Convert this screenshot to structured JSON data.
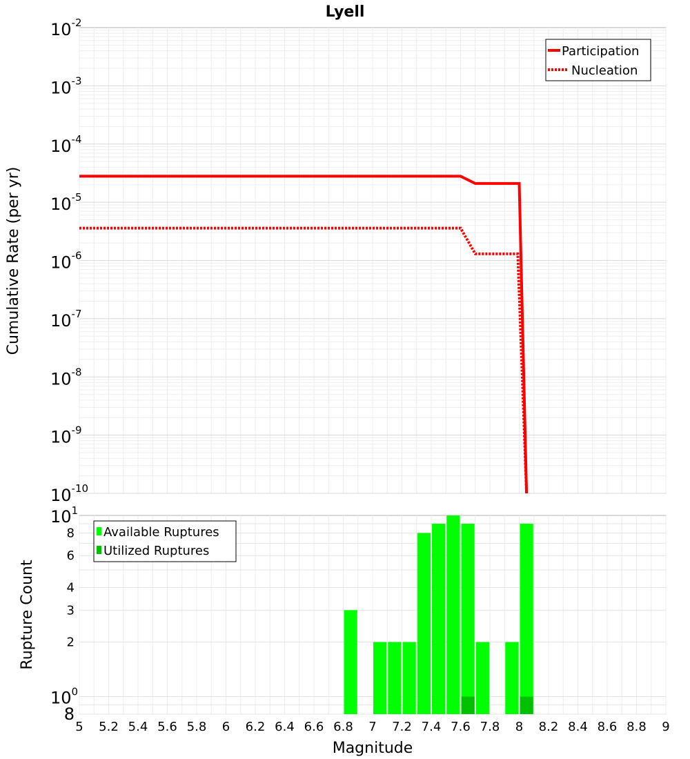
{
  "chart_data": [
    {
      "type": "line",
      "title": "Lyell",
      "xlabel": "",
      "ylabel": "Cumulative Rate (per yr)",
      "xlim": [
        5,
        9
      ],
      "ylim": [
        1e-10,
        0.01
      ],
      "yscale": "log",
      "grid": true,
      "legend": {
        "placement": "top-right",
        "entries": [
          "Participation",
          "Nucleation"
        ]
      },
      "y_ticks": [
        {
          "base": "10",
          "exp": "-2"
        },
        {
          "base": "10",
          "exp": "-3"
        },
        {
          "base": "10",
          "exp": "-4"
        },
        {
          "base": "10",
          "exp": "-5"
        },
        {
          "base": "10",
          "exp": "-6"
        },
        {
          "base": "10",
          "exp": "-7"
        },
        {
          "base": "10",
          "exp": "-8"
        },
        {
          "base": "10",
          "exp": "-9"
        },
        {
          "base": "10",
          "exp": "-10"
        }
      ],
      "series": [
        {
          "name": "Participation",
          "color": "#ff0000",
          "style": "solid",
          "x": [
            5.0,
            7.6,
            7.7,
            8.0,
            8.05
          ],
          "y": [
            2.8e-05,
            2.8e-05,
            2.1e-05,
            2.1e-05,
            1e-10
          ]
        },
        {
          "name": "Nucleation",
          "color": "#ff0000",
          "style": "dotted",
          "x": [
            5.0,
            7.6,
            7.7,
            7.99,
            8.05
          ],
          "y": [
            3.6e-06,
            3.6e-06,
            1.3e-06,
            1.3e-06,
            1e-10
          ]
        }
      ]
    },
    {
      "type": "bar",
      "xlabel": "Magnitude",
      "ylabel": "Rupture Count",
      "xlim": [
        5,
        9
      ],
      "ylim": [
        0.8,
        10
      ],
      "yscale": "log",
      "grid": true,
      "legend": {
        "placement": "top-left",
        "entries": [
          "Available Ruptures",
          "Utilized Ruptures"
        ]
      },
      "x_ticks": [
        "5",
        "5.2",
        "5.4",
        "5.6",
        "5.8",
        "6",
        "6.2",
        "6.4",
        "6.6",
        "6.8",
        "7",
        "7.2",
        "7.4",
        "7.6",
        "7.8",
        "8",
        "8.2",
        "8.4",
        "8.6",
        "8.8",
        "9"
      ],
      "y_ticks_minor": [
        "8",
        "6",
        "4",
        "3",
        "2"
      ],
      "y_ticks_major": [
        {
          "base": "10",
          "exp": "1"
        },
        {
          "base": "10",
          "exp": "0"
        }
      ],
      "y_bottom_label": "8",
      "bin_width": 0.1,
      "series": [
        {
          "name": "Available Ruptures",
          "color": "#00ff00",
          "x": [
            6.85,
            7.05,
            7.15,
            7.25,
            7.35,
            7.45,
            7.55,
            7.65,
            7.75,
            7.95,
            8.05
          ],
          "values": [
            3,
            2,
            2,
            2,
            8,
            9,
            10,
            9,
            2,
            2,
            9
          ]
        },
        {
          "name": "Utilized Ruptures",
          "color": "#00c000",
          "x": [
            7.65,
            8.05
          ],
          "values": [
            1,
            1
          ]
        }
      ]
    }
  ]
}
